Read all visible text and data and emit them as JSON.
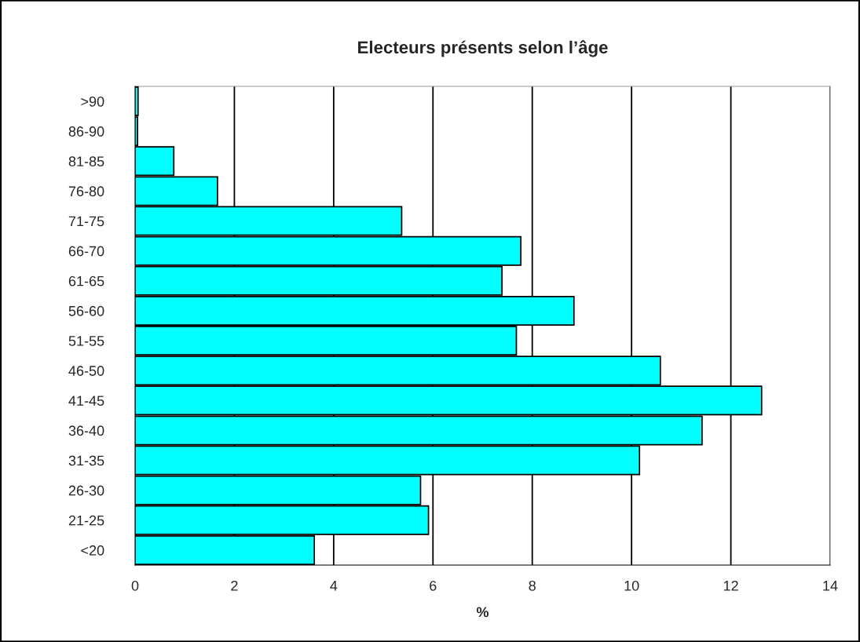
{
  "chart_data": {
    "type": "bar",
    "orientation": "horizontal",
    "title": "Electeurs présents selon l’âge",
    "xlabel": "%",
    "categories": [
      ">90",
      "86-90",
      "81-85",
      "76-80",
      "71-75",
      "66-70",
      "61-65",
      "56-60",
      "51-55",
      "46-50",
      "41-45",
      "36-40",
      "31-35",
      "26-30",
      "21-25",
      "<20"
    ],
    "values": [
      0.06,
      0.05,
      0.78,
      1.66,
      5.37,
      7.77,
      7.39,
      8.84,
      7.68,
      10.58,
      12.62,
      11.42,
      10.16,
      5.75,
      5.91,
      3.61
    ],
    "color": "#00ffff",
    "xlim": [
      0,
      14
    ],
    "xticks": [
      0,
      2,
      4,
      6,
      8,
      10,
      12,
      14
    ],
    "grid": "x"
  }
}
